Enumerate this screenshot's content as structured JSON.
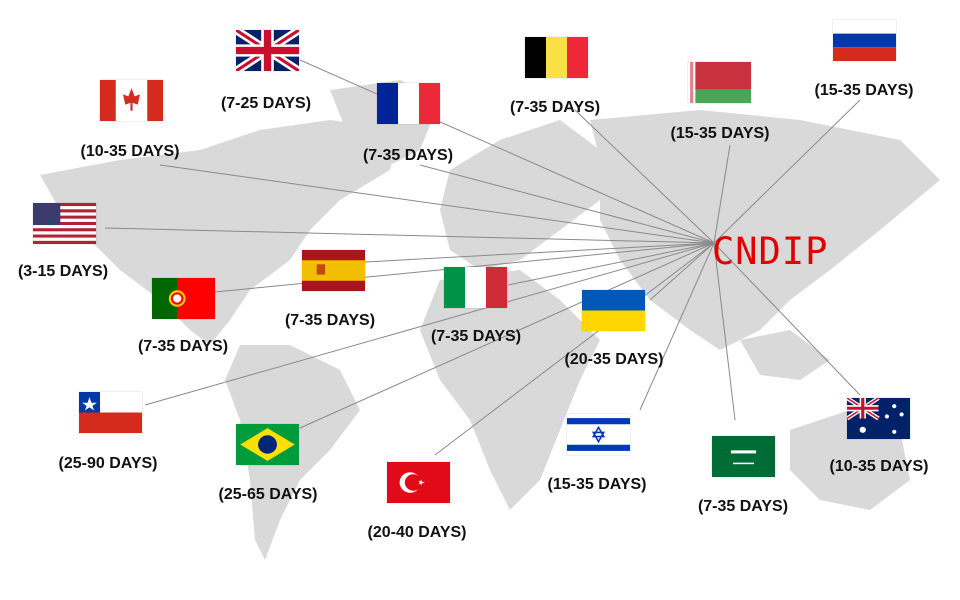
{
  "hub": {
    "label": "CNDIP",
    "color": "#e00000"
  },
  "map_color": "#d9d9d9",
  "line_color": "#8a8a8a",
  "destinations": [
    {
      "country": "uk",
      "label": "(7-25 DAYS)"
    },
    {
      "country": "canada",
      "label": "(10-35 DAYS)"
    },
    {
      "country": "france",
      "label": "(7-35 DAYS)"
    },
    {
      "country": "belgium",
      "label": "(7-35 DAYS)"
    },
    {
      "country": "belarus",
      "label": "(15-35 DAYS)"
    },
    {
      "country": "russia",
      "label": "(15-35 DAYS)"
    },
    {
      "country": "usa",
      "label": "(3-15 DAYS)"
    },
    {
      "country": "spain",
      "label": "(7-35 DAYS)"
    },
    {
      "country": "portugal",
      "label": "(7-35 DAYS)"
    },
    {
      "country": "italy",
      "label": "(7-35 DAYS)"
    },
    {
      "country": "ukraine",
      "label": "(20-35 DAYS)"
    },
    {
      "country": "chile",
      "label": "(25-90 DAYS)"
    },
    {
      "country": "brazil",
      "label": "(25-65 DAYS)"
    },
    {
      "country": "turkey",
      "label": "(20-40 DAYS)"
    },
    {
      "country": "israel",
      "label": "(15-35 DAYS)"
    },
    {
      "country": "saudi-arabia",
      "label": "(7-35 DAYS)"
    },
    {
      "country": "australia",
      "label": "(10-35 DAYS)"
    }
  ]
}
